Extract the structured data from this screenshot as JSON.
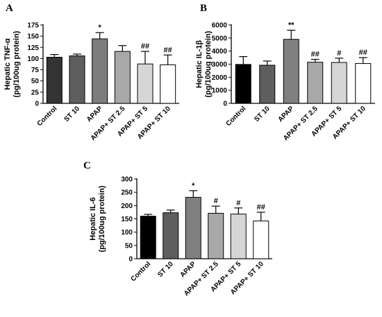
{
  "chart_data": [
    {
      "panel": "A",
      "type": "bar",
      "ylabel_line1": "Hepatic TNF-α",
      "ylabel_line2": "(pg/100ug protein)",
      "ylim": [
        0,
        175
      ],
      "yticks": [
        0,
        25,
        50,
        75,
        100,
        125,
        150,
        175
      ],
      "categories": [
        "Control",
        "ST 10",
        "APAP",
        "APAP+ ST 2.5",
        "APAP+ ST 5",
        "APAP+ ST 10"
      ],
      "values": [
        103,
        106,
        144,
        116,
        88,
        86
      ],
      "errors": [
        6,
        4,
        14,
        13,
        28,
        22
      ],
      "significance": [
        "",
        "",
        "*",
        "",
        "##",
        "##"
      ],
      "bar_colors": [
        "#333333",
        "#5e5e5e",
        "#7d7d7d",
        "#a8a8a8",
        "#d6d6d6",
        "#ffffff"
      ]
    },
    {
      "panel": "B",
      "type": "bar",
      "ylabel_line1": "Hepatic IL-1β",
      "ylabel_line2": "(pg/100ug protein)",
      "ylim": [
        0,
        6000
      ],
      "yticks": [
        0,
        1000,
        2000,
        3000,
        4000,
        5000,
        6000
      ],
      "categories": [
        "Control",
        "ST 10",
        "APAP",
        "APAP+ ST 2.5",
        "APAP+ ST 5",
        "APAP+ ST 10"
      ],
      "values": [
        2980,
        2920,
        4900,
        3150,
        3130,
        3050
      ],
      "errors": [
        600,
        320,
        700,
        220,
        330,
        450
      ],
      "significance": [
        "",
        "",
        "**",
        "##",
        "#",
        "##"
      ],
      "bar_colors": [
        "#000000",
        "#5e5e5e",
        "#808080",
        "#a8a8a8",
        "#d6d6d6",
        "#ffffff"
      ]
    },
    {
      "panel": "C",
      "type": "bar",
      "ylabel_line1": "Hepatic IL-6",
      "ylabel_line2": "(pg/100ug protein)",
      "ylim": [
        0,
        300
      ],
      "yticks": [
        0,
        50,
        100,
        150,
        200,
        250,
        300
      ],
      "categories": [
        "Control",
        "ST 10",
        "APAP",
        "APAP+ ST 2.5",
        "APAP+ ST 5",
        "APAP+ ST 10"
      ],
      "values": [
        160,
        173,
        231,
        171,
        168,
        142
      ],
      "errors": [
        7,
        10,
        25,
        27,
        23,
        33
      ],
      "significance": [
        "",
        "",
        "*",
        "#",
        "#",
        "##"
      ],
      "bar_colors": [
        "#000000",
        "#5e5e5e",
        "#808080",
        "#a8a8a8",
        "#d6d6d6",
        "#ffffff"
      ]
    }
  ]
}
